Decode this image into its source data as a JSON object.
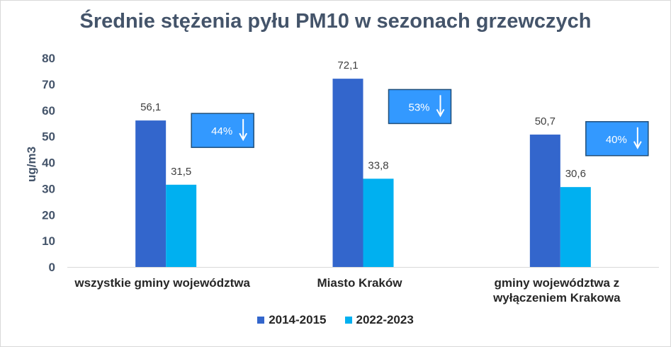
{
  "chart_data": {
    "type": "bar",
    "title": "Średnie stężenia pyłu PM10 w sezonach grzewczych",
    "ylabel": "ug/m3",
    "xlabel": "",
    "ylim": [
      0,
      80
    ],
    "yticks": [
      0,
      10,
      20,
      30,
      40,
      50,
      60,
      70,
      80
    ],
    "categories": [
      [
        "wszystkie gminy województwa"
      ],
      [
        "Miasto Kraków"
      ],
      [
        "gminy województwa z",
        "wyłączeniem Krakowa"
      ]
    ],
    "series": [
      {
        "name": "2014-2015",
        "color": "#3366cc",
        "values": [
          56.1,
          72.1,
          50.7
        ],
        "labels": [
          "56,1",
          "72,1",
          "50,7"
        ]
      },
      {
        "name": "2022-2023",
        "color": "#00b0f0",
        "values": [
          31.5,
          33.8,
          30.6
        ],
        "labels": [
          "31,5",
          "33,8",
          "30,6"
        ]
      }
    ],
    "annotations": [
      {
        "text": "44%",
        "icon": "arrow-down-icon"
      },
      {
        "text": "53%",
        "icon": "arrow-down-icon"
      },
      {
        "text": "40%",
        "icon": "arrow-down-icon"
      }
    ],
    "legend": "bottom",
    "grid": false
  },
  "colors": {
    "title": "#44546a",
    "badge_fill": "#3399ff",
    "badge_border": "#1f4e79"
  }
}
